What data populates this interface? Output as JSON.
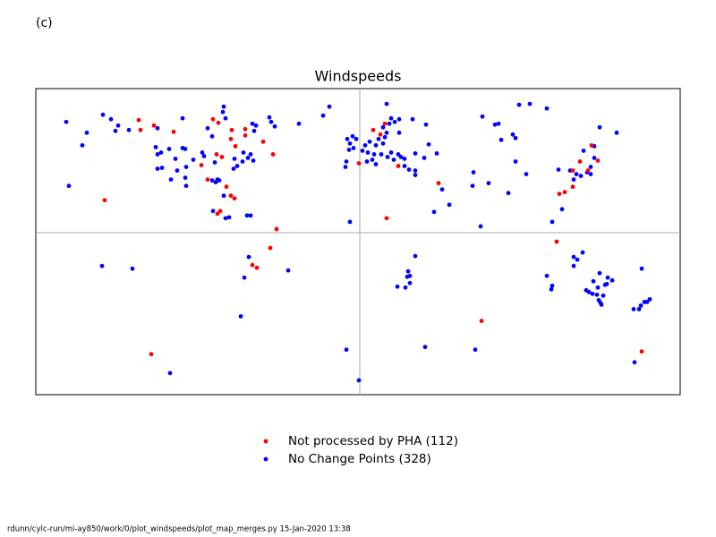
{
  "panel_label": "(c)",
  "footer": "rdunn/cylc-run/mi-ay850/work/0/plot_windspeeds/plot_map_merges.py   15-Jan-2020 13:38",
  "chart_data": {
    "type": "scatter",
    "title": "Windspeeds",
    "xlim": [
      -181,
      179
    ],
    "ylim": [
      -90,
      80
    ],
    "zero_lines": true,
    "legend": "below",
    "series": [
      {
        "name": "Not processed by PHA (112)",
        "color": "#ff0000",
        "x": [
          -123.5,
          -122.5,
          -115,
          -104,
          -142.5,
          -82,
          -79,
          -71.5,
          -64,
          -64,
          -72,
          -69.5,
          -80,
          -77,
          -88.5,
          -85,
          -74.5,
          -72,
          -70,
          -78,
          -79.5,
          -54,
          -48.5,
          -46.5,
          -50,
          -60,
          -57.5,
          -0.5,
          7.5,
          11.5,
          15,
          44,
          68,
          110,
          111.5,
          114.5,
          119,
          123,
          129.5,
          133,
          127.5,
          119,
          157.5,
          -116.5,
          14,
          21.5
        ],
        "y": [
          62.5,
          57,
          59.5,
          56,
          18,
          63,
          61,
          57,
          57.5,
          54,
          52,
          48,
          43.5,
          42,
          37.5,
          29.5,
          25.5,
          20.5,
          19,
          12,
          10.5,
          50.5,
          43.5,
          2,
          -8.5,
          -18,
          -19.5,
          38.5,
          57,
          54.5,
          8,
          27.5,
          -49,
          -5,
          21.5,
          22.5,
          25.5,
          39.5,
          48.5,
          40,
          34.5,
          34.5,
          -66,
          -67.5,
          60.5,
          37
        ]
      },
      {
        "name": "No Change Points (328)",
        "color": "#0000ff",
        "x": [
          -164,
          -155,
          -152.5,
          -162.5,
          -143.5,
          -139,
          -136.5,
          -135,
          -129,
          -114,
          -113,
          -111,
          -106.5,
          -103,
          -99,
          -97.5,
          -102,
          -97,
          -97.5,
          -97,
          -113,
          -110.5,
          -105.5,
          -99,
          -113,
          -93,
          -88,
          -87,
          -85,
          -82.5,
          -81,
          -76.5,
          -76,
          -75,
          -79.5,
          -82.5,
          -80.5,
          -78.5,
          -76,
          -82,
          -75,
          -73,
          -70.5,
          -68.5,
          -70,
          -65,
          -62.5,
          -61,
          -59.5,
          -65.5,
          -60,
          -58,
          -59,
          -50.5,
          -49.5,
          -47.5,
          -34,
          -20.5,
          -17,
          -63,
          -61,
          -62,
          -64.5,
          -66.5,
          -40,
          -106,
          -144,
          -127,
          -7,
          -5.5,
          -4,
          -2,
          -3.5,
          -6,
          -8,
          -7.5,
          -5.5,
          1.5,
          3,
          4.5,
          5.5,
          8,
          9,
          10.5,
          13,
          14,
          15,
          13,
          16.5,
          17.5,
          19.5,
          22,
          15,
          22,
          21.5,
          19,
          23,
          25,
          25,
          27.5,
          31,
          31,
          31,
          29.5,
          37,
          38.5,
          43,
          36,
          4,
          7,
          9,
          12,
          15.5,
          17.5,
          27,
          28,
          26.5,
          21,
          25.5,
          28,
          31,
          41.5,
          46,
          50,
          -7.5,
          36.5,
          64.5,
          -0.5,
          63.5,
          63,
          67.5,
          68.5,
          72,
          75.5,
          77.5,
          79,
          83,
          85.5,
          87,
          87,
          93,
          89,
          95,
          104.5,
          107.5,
          111,
          113,
          117.5,
          119.5,
          121,
          123.5,
          125,
          127,
          129,
          129,
          131,
          131,
          134,
          143.5,
          104.5,
          107.5,
          107,
          119.5,
          119.5,
          121.5,
          124.5,
          126.5,
          128,
          130,
          130.5,
          132.5,
          133,
          134.5,
          136,
          133.5,
          135,
          134,
          137,
          138.5,
          141,
          138,
          153,
          156,
          157,
          159,
          160.5,
          162,
          157.5,
          153.5
        ],
        "y": [
          61.5,
          48.5,
          55.5,
          26,
          65.5,
          63,
          56.5,
          59.5,
          57,
          47.5,
          43.5,
          44.5,
          46.5,
          41,
          47,
          46.5,
          34.5,
          36.5,
          30.5,
          26,
          35.5,
          36,
          29.5,
          63.5,
          58,
          40.5,
          44.5,
          42.5,
          58,
          53.5,
          39,
          67,
          70,
          63.5,
          29.5,
          29,
          28,
          29,
          20.5,
          12,
          8,
          8.5,
          35.5,
          37,
          41,
          44.5,
          41.5,
          43.5,
          40,
          39.5,
          60.5,
          59.5,
          56.5,
          64,
          61.5,
          59,
          60.5,
          65,
          70,
          9.5,
          9.5,
          -13.5,
          -25,
          -46.5,
          -21,
          -78,
          -18.5,
          -20,
          52,
          49.5,
          53.5,
          52,
          47,
          46,
          36.5,
          39.5,
          6,
          45.5,
          48.5,
          44.5,
          50.5,
          43.5,
          48.5,
          52,
          49.5,
          53,
          55.5,
          58.5,
          60.5,
          63.5,
          61.5,
          63,
          71.5,
          55.5,
          43.5,
          40.5,
          42,
          41,
          37,
          35,
          34.5,
          32,
          44,
          63,
          60,
          49,
          44,
          41.5,
          39.5,
          40.5,
          38,
          43.5,
          42,
          44.5,
          -21.5,
          -24,
          -24.5,
          -30,
          -30.5,
          -28,
          -13,
          11.5,
          24,
          15.5,
          -65,
          -63.5,
          -65,
          -82,
          33.5,
          26,
          3.5,
          64.5,
          27.5,
          60,
          60.5,
          51.5,
          22,
          54.5,
          52.5,
          39.5,
          32.5,
          71,
          71.5,
          69,
          6,
          35,
          13,
          34.5,
          29.5,
          32.5,
          31.5,
          45.5,
          33.5,
          36.5,
          32.5,
          48,
          41.5,
          58.5,
          55.5,
          -24,
          -29.5,
          -31.5,
          -13.5,
          -18.5,
          -15,
          -11,
          -32,
          -33,
          -34,
          -27,
          -34.5,
          -30.5,
          -39,
          -35,
          -37.5,
          -40,
          -22.5,
          -29,
          -25,
          -26.5,
          -28.5,
          -42.5,
          -42.5,
          -40.5,
          -38.5,
          -38.5,
          -37,
          -20,
          -72
        ]
      }
    ]
  }
}
